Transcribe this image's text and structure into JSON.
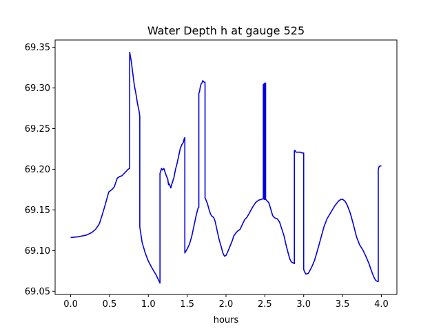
{
  "chart_data": {
    "type": "line",
    "title": "Water Depth h at gauge 525",
    "xlabel": "hours",
    "ylabel": "",
    "xlim": [
      -0.2,
      4.2
    ],
    "ylim": [
      69.046,
      69.359
    ],
    "xticks": [
      0.0,
      0.5,
      1.0,
      1.5,
      2.0,
      2.5,
      3.0,
      3.5,
      4.0
    ],
    "xtick_labels": [
      "0.0",
      "0.5",
      "1.0",
      "1.5",
      "2.0",
      "2.5",
      "3.0",
      "3.5",
      "4.0"
    ],
    "yticks": [
      69.05,
      69.1,
      69.15,
      69.2,
      69.25,
      69.3,
      69.35
    ],
    "ytick_labels": [
      "69.05",
      "69.10",
      "69.15",
      "69.20",
      "69.25",
      "69.30",
      "69.35"
    ],
    "grid": false,
    "series": [
      {
        "color": "#0000dd",
        "x": [
          0.0,
          0.1,
          0.2,
          0.27,
          0.32,
          0.37,
          0.41,
          0.45,
          0.49,
          0.53,
          0.56,
          0.6,
          0.63,
          0.66,
          0.7,
          0.74,
          0.76,
          0.76,
          0.78,
          0.8,
          0.82,
          0.84,
          0.86,
          0.88,
          0.89,
          0.89,
          0.92,
          0.96,
          1.0,
          1.05,
          1.1,
          1.13,
          1.15,
          1.15,
          1.17,
          1.18,
          1.2,
          1.22,
          1.24,
          1.25,
          1.26,
          1.27,
          1.29,
          1.3,
          1.33,
          1.35,
          1.37,
          1.39,
          1.41,
          1.43,
          1.45,
          1.46,
          1.47,
          1.47,
          1.5,
          1.53,
          1.56,
          1.58,
          1.6,
          1.62,
          1.64,
          1.65,
          1.65,
          1.66,
          1.67,
          1.68,
          1.69,
          1.7,
          1.71,
          1.72,
          1.73,
          1.73,
          1.76,
          1.78,
          1.8,
          1.82,
          1.84,
          1.86,
          1.88,
          1.91,
          1.94,
          1.96,
          1.98,
          2.0,
          2.02,
          2.05,
          2.08,
          2.1,
          2.13,
          2.15,
          2.18,
          2.21,
          2.24,
          2.27,
          2.3,
          2.34,
          2.38,
          2.42,
          2.46,
          2.48,
          2.48,
          2.49,
          2.49,
          2.5,
          2.5,
          2.51,
          2.51,
          2.51,
          2.55,
          2.57,
          2.6,
          2.63,
          2.66,
          2.69,
          2.72,
          2.75,
          2.77,
          2.8,
          2.82,
          2.84,
          2.86,
          2.88,
          2.88,
          2.89,
          2.9,
          2.93,
          2.96,
          2.98,
          3.0,
          3.0,
          3.0,
          3.01,
          3.03,
          3.06,
          3.1,
          3.14,
          3.18,
          3.22,
          3.26,
          3.3,
          3.35,
          3.4,
          3.45,
          3.48,
          3.5,
          3.53,
          3.56,
          3.6,
          3.64,
          3.68,
          3.72,
          3.76,
          3.8,
          3.84,
          3.88,
          3.91,
          3.93,
          3.95,
          3.96,
          3.96,
          3.97,
          3.98,
          4.0
        ],
        "y": [
          69.116,
          69.117,
          69.119,
          69.122,
          69.126,
          69.133,
          69.145,
          69.158,
          69.172,
          69.175,
          69.178,
          69.189,
          69.191,
          69.192,
          69.196,
          69.2,
          69.201,
          69.344,
          69.333,
          69.318,
          69.303,
          69.293,
          69.281,
          69.272,
          69.265,
          69.129,
          69.11,
          69.097,
          69.087,
          69.078,
          69.07,
          69.064,
          69.06,
          69.195,
          69.201,
          69.199,
          69.201,
          69.195,
          69.19,
          69.188,
          69.181,
          69.182,
          69.177,
          69.181,
          69.19,
          69.2,
          69.207,
          69.216,
          69.225,
          69.23,
          69.233,
          69.237,
          69.239,
          69.097,
          69.102,
          69.108,
          69.118,
          69.127,
          69.136,
          69.145,
          69.152,
          69.153,
          69.293,
          69.296,
          69.302,
          69.305,
          69.306,
          69.309,
          69.308,
          69.307,
          69.307,
          69.165,
          69.158,
          69.151,
          69.145,
          69.142,
          69.141,
          69.136,
          69.127,
          69.114,
          69.104,
          69.097,
          69.093,
          69.094,
          69.098,
          69.105,
          69.112,
          69.118,
          69.122,
          69.124,
          69.126,
          69.132,
          69.138,
          69.141,
          69.146,
          69.153,
          69.159,
          69.162,
          69.163,
          69.164,
          69.304,
          69.305,
          69.163,
          69.163,
          69.306,
          69.306,
          69.163,
          69.163,
          69.159,
          69.153,
          69.143,
          69.14,
          69.139,
          69.135,
          69.126,
          69.117,
          69.108,
          69.097,
          69.09,
          69.086,
          69.085,
          69.084,
          69.223,
          69.223,
          69.221,
          69.221,
          69.221,
          69.22,
          69.22,
          69.219,
          69.077,
          69.074,
          69.071,
          69.072,
          69.079,
          69.088,
          69.101,
          69.115,
          69.129,
          69.139,
          69.147,
          69.155,
          69.161,
          69.163,
          69.163,
          69.161,
          69.156,
          69.146,
          69.132,
          69.117,
          69.107,
          69.101,
          69.093,
          69.084,
          69.073,
          69.066,
          69.063,
          69.062,
          69.062,
          69.2,
          69.203,
          69.204,
          69.204
        ]
      }
    ]
  }
}
